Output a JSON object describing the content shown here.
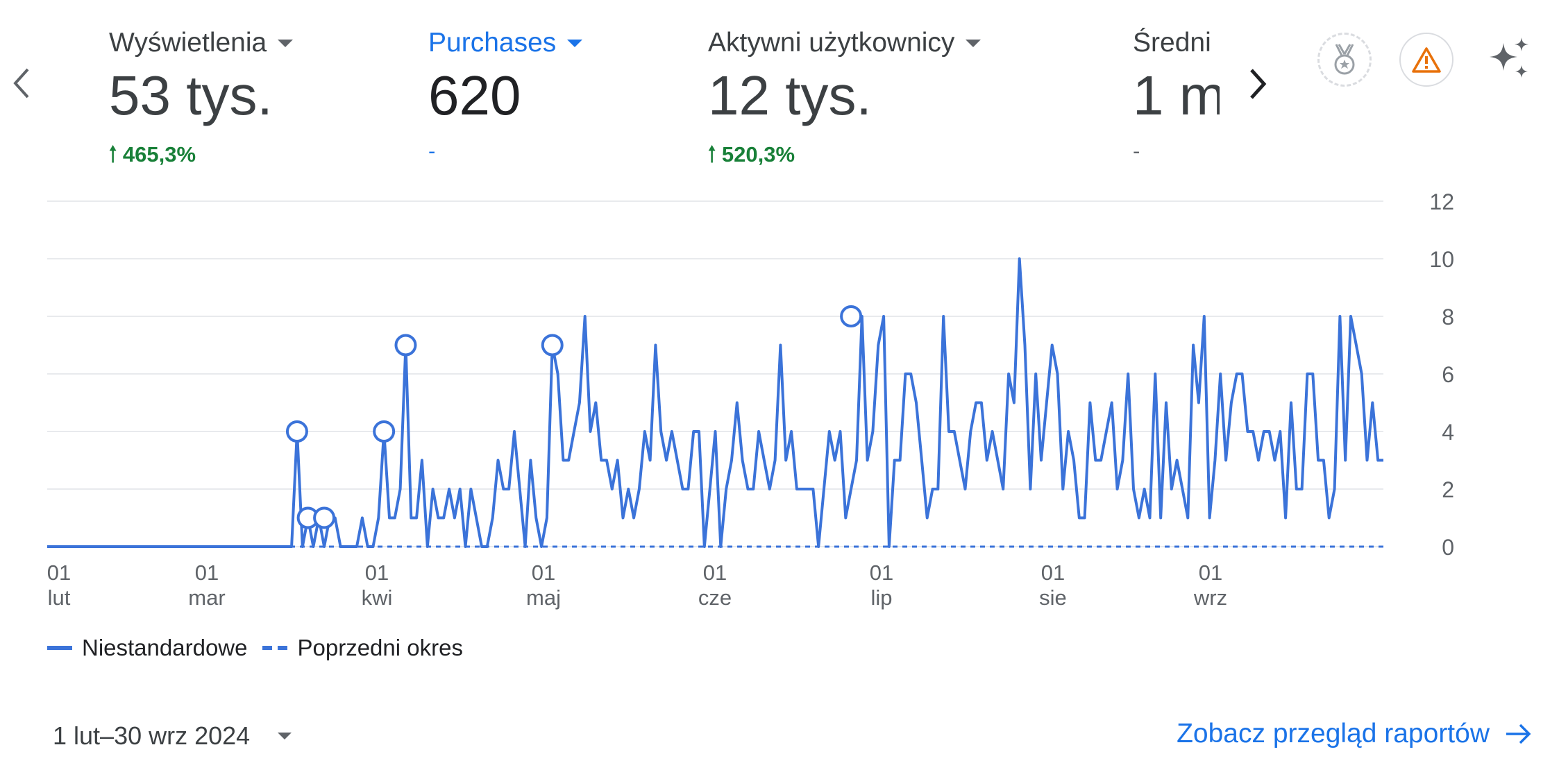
{
  "nav": {
    "prev_icon": "chevron-left-icon",
    "next_icon": "chevron-right-icon"
  },
  "metrics": [
    {
      "label": "Wyświetlenia",
      "value": "53 tys.",
      "change": "465,3%",
      "trend": "up"
    },
    {
      "label": "Purchases",
      "value": "620",
      "change": "-",
      "trend": "none"
    },
    {
      "label": "Aktywni użytkownicy",
      "value": "12 tys.",
      "change": "520,3%",
      "trend": "up"
    },
    {
      "label": "Średni",
      "value": "1 m",
      "change": "-",
      "trend": "none"
    }
  ],
  "toolbar": {
    "icons": [
      "medal-icon",
      "warning-icon",
      "sparkle-icon"
    ]
  },
  "colors": {
    "accent": "#1a73e8",
    "series": "#3b73d9",
    "positive": "#188038",
    "warning": "#e8710a",
    "grid": "#e8eaed",
    "axis_text": "#5f6368"
  },
  "chart_data": {
    "type": "line",
    "x_ticks": [
      {
        "day": "01",
        "month": "lut"
      },
      {
        "day": "01",
        "month": "mar"
      },
      {
        "day": "01",
        "month": "kwi"
      },
      {
        "day": "01",
        "month": "maj"
      },
      {
        "day": "01",
        "month": "cze"
      },
      {
        "day": "01",
        "month": "lip"
      },
      {
        "day": "01",
        "month": "sie"
      },
      {
        "day": "01",
        "month": "wrz"
      }
    ],
    "y_ticks": [
      "0",
      "2",
      "4",
      "6",
      "8",
      "10",
      "12"
    ],
    "ylim": [
      0,
      12
    ],
    "series": [
      {
        "name": "Niestandardowe",
        "style": "solid",
        "values": [
          0,
          0,
          0,
          0,
          0,
          0,
          0,
          0,
          0,
          0,
          0,
          0,
          0,
          0,
          0,
          0,
          0,
          0,
          0,
          0,
          0,
          0,
          0,
          0,
          0,
          0,
          0,
          0,
          0,
          0,
          0,
          0,
          0,
          0,
          0,
          0,
          0,
          0,
          0,
          0,
          0,
          0,
          0,
          0,
          0,
          0,
          4,
          0,
          1,
          0,
          1,
          0,
          1,
          1,
          0,
          0,
          0,
          0,
          1,
          0,
          0,
          1,
          4,
          1,
          1,
          2,
          7,
          1,
          1,
          3,
          0,
          2,
          1,
          1,
          2,
          1,
          2,
          0,
          2,
          1,
          0,
          0,
          1,
          3,
          2,
          2,
          4,
          2,
          0,
          3,
          1,
          0,
          1,
          7,
          6,
          3,
          3,
          4,
          5,
          8,
          4,
          5,
          3,
          3,
          2,
          3,
          1,
          2,
          1,
          2,
          4,
          3,
          7,
          4,
          3,
          4,
          3,
          2,
          2,
          4,
          4,
          0,
          2,
          4,
          0,
          2,
          3,
          5,
          3,
          2,
          2,
          4,
          3,
          2,
          3,
          7,
          3,
          4,
          2,
          2,
          2,
          2,
          0,
          2,
          4,
          3,
          4,
          1,
          2,
          3,
          8,
          3,
          4,
          7,
          8,
          0,
          3,
          3,
          6,
          6,
          5,
          3,
          1,
          2,
          2,
          8,
          4,
          4,
          3,
          2,
          4,
          5,
          5,
          3,
          4,
          3,
          2,
          6,
          5,
          10,
          7,
          2,
          6,
          3,
          5,
          7,
          6,
          2,
          4,
          3,
          1,
          1,
          5,
          3,
          3,
          4,
          5,
          2,
          3,
          6,
          2,
          1,
          2,
          1,
          6,
          1,
          5,
          2,
          3,
          2,
          1,
          7,
          5,
          8,
          1,
          3,
          6,
          3,
          5,
          6,
          6,
          4,
          4,
          3,
          4,
          4,
          3,
          4,
          1,
          5,
          2,
          2,
          6,
          6,
          3,
          3,
          1,
          2,
          8,
          3,
          8,
          7,
          6,
          3,
          5,
          3,
          3
        ],
        "markers": [
          {
            "index": 46,
            "value": 4
          },
          {
            "index": 48,
            "value": 1
          },
          {
            "index": 51,
            "value": 1
          },
          {
            "index": 62,
            "value": 4
          },
          {
            "index": 66,
            "value": 7
          },
          {
            "index": 93,
            "value": 7
          },
          {
            "index": 148,
            "value": 8
          }
        ]
      },
      {
        "name": "Poprzedni okres",
        "style": "dashed",
        "values": [
          0,
          0
        ]
      }
    ]
  },
  "legend": {
    "current_label": "Niestandardowe",
    "previous_label": "Poprzedni okres"
  },
  "footer": {
    "date_range": "1 lut–30 wrz 2024",
    "report_link": "Zobacz przegląd raportów",
    "report_link_icon": "arrow-right-icon"
  }
}
